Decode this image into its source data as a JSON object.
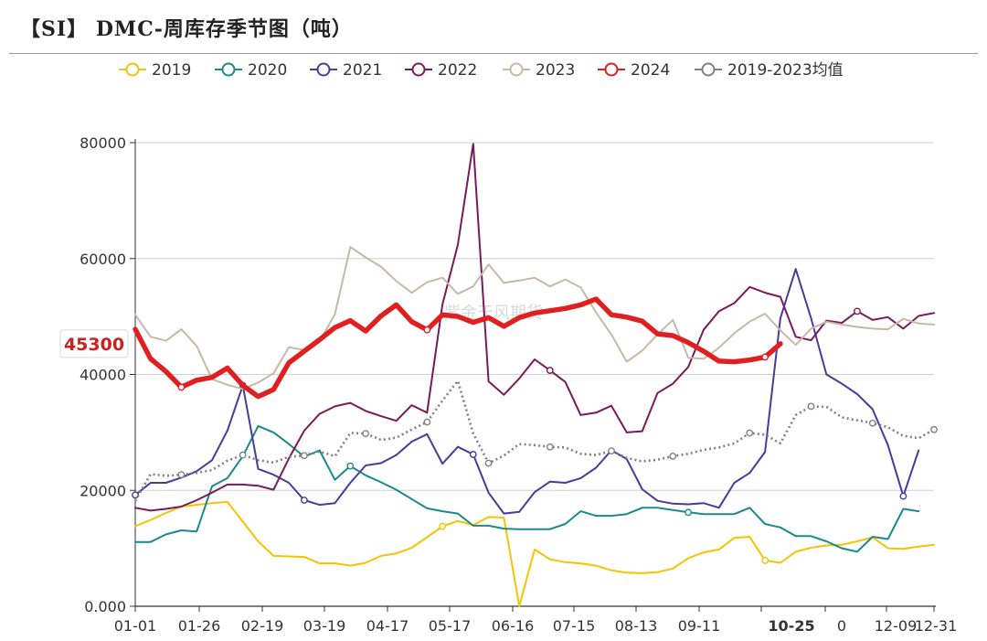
{
  "chart_data": {
    "type": "line",
    "title": "【SI】 DMC-周库存季节图（吨）",
    "watermark": "紫金天风期货",
    "xlabel": "",
    "ylabel": "",
    "ylim": [
      0,
      80000
    ],
    "y_ticks": [
      0,
      20000,
      40000,
      60000,
      80000
    ],
    "y_tick_labels": [
      "0.000",
      "20000",
      "40000",
      "60000",
      "80000"
    ],
    "x_tick_labels": [
      "01-01",
      "01-26",
      "02-19",
      "03-19",
      "04-17",
      "05-17",
      "06-16",
      "07-15",
      "08-13",
      "09-11",
      "10-25",
      "0",
      "12-09",
      "12-31"
    ],
    "highlight_tick": "10-25",
    "x_weeks": [
      1,
      2,
      3,
      4,
      5,
      6,
      7,
      8,
      9,
      10,
      11,
      12,
      13,
      14,
      15,
      16,
      17,
      18,
      19,
      20,
      21,
      22,
      23,
      24,
      25,
      26,
      27,
      28,
      29,
      30,
      31,
      32,
      33,
      34,
      35,
      36,
      37,
      38,
      39,
      40,
      41,
      42,
      43,
      44,
      45,
      46,
      47,
      48,
      49,
      50,
      51,
      52,
      53
    ],
    "callout": {
      "label": "45300",
      "value": 45300,
      "color": "#e02020"
    },
    "series": [
      {
        "name": "2019",
        "color": "#f5c400",
        "style": "solid",
        "width": 2,
        "values": [
          13800,
          14900,
          16100,
          17200,
          17500,
          17800,
          18000,
          14600,
          11200,
          8700,
          8600,
          8500,
          7400,
          7400,
          7000,
          7500,
          8700,
          9100,
          10100,
          11900,
          13800,
          14700,
          14000,
          15400,
          15300,
          0,
          9800,
          8100,
          7600,
          7400,
          7000,
          6200,
          5800,
          5700,
          5900,
          6500,
          8300,
          9300,
          9800,
          11800,
          12000,
          7900,
          7500,
          9400,
          10100,
          10500,
          10600,
          11200,
          11900,
          10000,
          9900,
          10300,
          10600
        ],
        "markers": [
          21,
          42
        ]
      },
      {
        "name": "2020",
        "color": "#1a8a8a",
        "style": "solid",
        "width": 2,
        "values": [
          11100,
          11100,
          12400,
          13100,
          12900,
          20700,
          22100,
          25900,
          31100,
          30000,
          28000,
          25800,
          26900,
          21800,
          24200,
          22600,
          21400,
          20100,
          18500,
          16900,
          16400,
          16000,
          13900,
          13900,
          13400,
          13300,
          13300,
          13300,
          14200,
          16400,
          15600,
          15600,
          15900,
          17000,
          17000,
          16600,
          16200,
          15900,
          15900,
          15900,
          17000,
          14200,
          13600,
          12100,
          12100,
          11200,
          10000,
          9400,
          12000,
          11600,
          16800,
          16400
        ],
        "markers": [
          15,
          37
        ]
      },
      {
        "name": "2021",
        "color": "#4b3a9a",
        "style": "solid",
        "width": 2,
        "values": [
          19200,
          21300,
          21300,
          22200,
          23300,
          25200,
          30300,
          38100,
          23700,
          22700,
          21300,
          18300,
          17500,
          17800,
          21300,
          24300,
          24700,
          26100,
          28400,
          29700,
          24600,
          27500,
          26200,
          19600,
          16000,
          16300,
          19700,
          21500,
          21300,
          22100,
          23900,
          26900,
          25400,
          20200,
          18200,
          17700,
          17600,
          17800,
          17000,
          21300,
          23000,
          26600,
          49700,
          58200,
          49700,
          40000,
          38400,
          36600,
          34000,
          27800,
          19000,
          26900
        ],
        "markers": [
          1,
          8,
          12,
          23,
          51
        ]
      },
      {
        "name": "2022",
        "color": "#7a1a5a",
        "style": "solid",
        "width": 2,
        "values": [
          17000,
          16500,
          16800,
          17200,
          18300,
          19600,
          21000,
          21000,
          20800,
          20100,
          25500,
          30300,
          33200,
          34500,
          35100,
          33700,
          32800,
          32000,
          34700,
          33400,
          52100,
          62400,
          79800,
          38800,
          36500,
          39300,
          42600,
          40700,
          38700,
          33000,
          33400,
          34600,
          30000,
          30200,
          36800,
          38400,
          41300,
          47700,
          50900,
          52300,
          55100,
          54100,
          53400,
          46500,
          45900,
          49300,
          48900,
          50900,
          49400,
          49900,
          47900,
          50100,
          50600
        ],
        "markers": [
          28,
          48
        ]
      },
      {
        "name": "2023",
        "color": "#c8b8a8",
        "style": "solid",
        "width": 2,
        "values": [
          50300,
          46500,
          45800,
          47800,
          44900,
          39200,
          38200,
          37500,
          38600,
          40200,
          44700,
          44200,
          45700,
          50400,
          62000,
          60200,
          58600,
          56100,
          54100,
          55900,
          56700,
          53900,
          55200,
          59000,
          55800,
          56200,
          56700,
          55200,
          56400,
          55000,
          50700,
          46900,
          42200,
          44100,
          46900,
          49400,
          42900,
          42700,
          44600,
          47100,
          49100,
          50500,
          47600,
          45100,
          47900,
          49100,
          48600,
          48200,
          47900,
          47800,
          49600,
          48800,
          48600
        ],
        "markers": []
      },
      {
        "name": "2024",
        "color": "#e02020",
        "style": "solid",
        "width": 5.5,
        "values": [
          47800,
          42700,
          40500,
          37800,
          39000,
          39500,
          41100,
          38100,
          36200,
          37400,
          42000,
          44000,
          46000,
          48100,
          49300,
          47500,
          50100,
          52000,
          49100,
          47700,
          50300,
          50000,
          49000,
          49800,
          48300,
          49800,
          50600,
          51000,
          51400,
          52000,
          53000,
          50300,
          49900,
          49200,
          47000,
          46700,
          45500,
          44000,
          42300,
          42200,
          42500,
          43000,
          45300
        ],
        "markers": [
          4,
          20,
          42
        ]
      },
      {
        "name": "2019-2023均值",
        "color": "#808080",
        "style": "dotted",
        "width": 2.6,
        "values": [
          18200,
          22800,
          22500,
          22700,
          23000,
          23500,
          25100,
          26100,
          25200,
          24800,
          25800,
          26000,
          26700,
          25900,
          29900,
          29800,
          28700,
          29100,
          30500,
          31800,
          35500,
          38900,
          29800,
          24700,
          26000,
          28000,
          27800,
          27500,
          27400,
          26300,
          26100,
          26800,
          25600,
          25000,
          25300,
          25900,
          26300,
          27000,
          27400,
          28100,
          29900,
          29600,
          28100,
          33000,
          34500,
          34400,
          32600,
          32100,
          31600,
          30900,
          29400,
          29000,
          30500
        ],
        "markers": [
          4,
          8,
          12,
          16,
          20,
          24,
          28,
          32,
          36,
          41,
          45,
          49,
          53
        ]
      }
    ]
  }
}
